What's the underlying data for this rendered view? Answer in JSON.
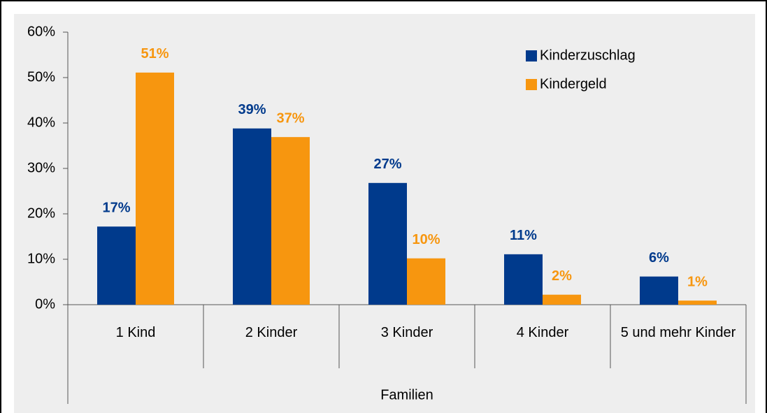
{
  "chart_data": {
    "type": "bar",
    "categories": [
      "1 Kind",
      "2 Kinder",
      "3 Kinder",
      "4 Kinder",
      "5 und mehr Kinder"
    ],
    "x_label": "Familien",
    "series": [
      {
        "name": "Kinderzuschlag",
        "color": "#003a8c",
        "values": [
          17.2,
          38.8,
          26.8,
          11.1,
          6.2
        ],
        "value_labels": [
          "17%",
          "39%",
          "27%",
          "11%",
          "6%"
        ]
      },
      {
        "name": "Kindergeld",
        "color": "#f7960f",
        "values": [
          51.1,
          36.9,
          10.2,
          2.2,
          0.9
        ],
        "value_labels": [
          "51%",
          "37%",
          "10%",
          "2%",
          "1%"
        ]
      }
    ],
    "ylim": [
      0,
      60
    ],
    "yticks": [
      {
        "value": 0,
        "label": "0%"
      },
      {
        "value": 10,
        "label": "10%"
      },
      {
        "value": 20,
        "label": "20%"
      },
      {
        "value": 30,
        "label": "30%"
      },
      {
        "value": 40,
        "label": "40%"
      },
      {
        "value": 50,
        "label": "50%"
      },
      {
        "value": 60,
        "label": "60%"
      }
    ],
    "legend": "top-right"
  }
}
